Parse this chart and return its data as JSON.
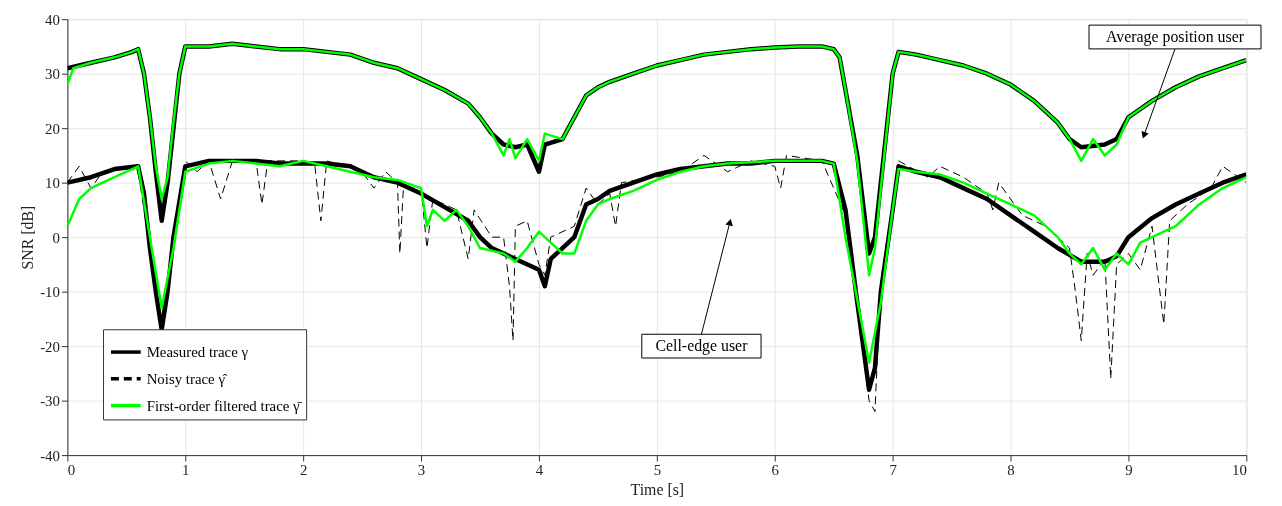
{
  "chart_data": {
    "type": "line",
    "xlabel": "Time [s]",
    "ylabel": "SNR [dB]",
    "xlim": [
      0,
      10
    ],
    "xticks": [
      0,
      1,
      2,
      3,
      4,
      5,
      6,
      7,
      8,
      9,
      10
    ],
    "ylim": [
      -40,
      40
    ],
    "yticks": [
      -40,
      -30,
      -20,
      -10,
      0,
      10,
      20,
      30,
      40
    ],
    "grid": true,
    "legend": "bottom left",
    "marker": "none",
    "annotations": [
      "Average position user",
      "Cell-edge user"
    ],
    "series": [
      {
        "color": "#000000",
        "line_style": "solid",
        "x": [
          0,
          0.2,
          0.4,
          0.55,
          0.6,
          0.65,
          0.7,
          0.75,
          0.8,
          0.85,
          0.9,
          0.95,
          1.0,
          1.2,
          1.4,
          1.6,
          1.8,
          2.0,
          2.2,
          2.4,
          2.6,
          2.8,
          3.0,
          3.2,
          3.4,
          3.5,
          3.6,
          3.7,
          3.8,
          3.9,
          4.0,
          4.05,
          4.2,
          4.3,
          4.4,
          4.5,
          4.6,
          4.8,
          5.0,
          5.2,
          5.4,
          5.6,
          5.8,
          6.0,
          6.2,
          6.4,
          6.5,
          6.55,
          6.6,
          6.7,
          6.8,
          6.85,
          6.9,
          7.0,
          7.05,
          7.2,
          7.4,
          7.6,
          7.8,
          8.0,
          8.2,
          8.4,
          8.5,
          8.6,
          8.8,
          8.9,
          9.0,
          9.2,
          9.4,
          9.6,
          9.8,
          10
        ],
        "values": [
          31,
          32,
          33,
          34,
          34.5,
          30,
          22,
          12,
          3,
          10,
          20,
          30,
          35,
          35,
          35.5,
          35,
          34.5,
          34.5,
          34,
          33.5,
          32,
          31,
          29,
          27,
          24.5,
          22,
          19,
          17,
          16.5,
          17,
          12,
          17,
          18,
          22,
          26,
          27.5,
          28.5,
          30,
          31.5,
          32.5,
          33.5,
          34,
          34.5,
          34.8,
          35,
          35,
          34.5,
          33,
          27,
          15,
          -3,
          0,
          10,
          30,
          34,
          33.5,
          32.5,
          31.5,
          30,
          28,
          25,
          21,
          18,
          16.5,
          17,
          18,
          22,
          25,
          27.5,
          29.5,
          31,
          32.5
        ]
      },
      {
        "color": "#00ff00",
        "line_style": "solid",
        "x": [
          0,
          0.05,
          0.2,
          0.4,
          0.55,
          0.6,
          0.65,
          0.7,
          0.75,
          0.8,
          0.85,
          0.9,
          0.95,
          1.0,
          1.2,
          1.4,
          1.6,
          1.8,
          2.0,
          2.2,
          2.4,
          2.6,
          2.8,
          3.0,
          3.2,
          3.4,
          3.5,
          3.6,
          3.7,
          3.75,
          3.8,
          3.9,
          4.0,
          4.05,
          4.2,
          4.3,
          4.4,
          4.5,
          4.6,
          4.8,
          5.0,
          5.2,
          5.4,
          5.6,
          5.8,
          6.0,
          6.2,
          6.4,
          6.5,
          6.55,
          6.6,
          6.7,
          6.8,
          6.85,
          6.9,
          7.0,
          7.05,
          7.2,
          7.4,
          7.6,
          7.8,
          8.0,
          8.2,
          8.4,
          8.5,
          8.6,
          8.7,
          8.8,
          8.9,
          9.0,
          9.2,
          9.4,
          9.6,
          9.8,
          10
        ],
        "values": [
          28,
          31,
          32,
          33,
          34,
          34.5,
          30,
          22,
          13,
          7,
          11,
          21,
          30,
          35,
          35,
          35.5,
          35,
          34.5,
          34.5,
          34,
          33.5,
          32,
          31,
          29,
          27,
          24.5,
          22,
          19,
          15,
          18,
          14.5,
          18,
          14,
          19,
          18,
          22,
          26,
          27.5,
          28.5,
          30,
          31.5,
          32.5,
          33.5,
          34,
          34.5,
          34.8,
          35,
          35,
          34.5,
          33,
          27,
          14,
          -7,
          -2,
          9,
          30,
          34,
          33.5,
          32.5,
          31.5,
          30,
          28,
          25,
          21,
          18,
          14,
          18,
          15,
          17,
          22,
          25,
          27.5,
          29.5,
          31,
          32.5
        ]
      },
      {
        "name": "Measured trace γ",
        "color": "#000000",
        "line_style": "solid",
        "x": [
          0,
          0.2,
          0.4,
          0.6,
          0.65,
          0.7,
          0.75,
          0.8,
          0.85,
          0.9,
          1.0,
          1.2,
          1.4,
          1.6,
          1.8,
          2.0,
          2.2,
          2.4,
          2.6,
          2.8,
          3.0,
          3.2,
          3.4,
          3.5,
          3.6,
          3.8,
          4.0,
          4.05,
          4.1,
          4.2,
          4.3,
          4.4,
          4.5,
          4.6,
          4.8,
          5.0,
          5.2,
          5.4,
          5.6,
          5.8,
          6.0,
          6.2,
          6.4,
          6.5,
          6.6,
          6.7,
          6.8,
          6.85,
          6.9,
          7.0,
          7.05,
          7.2,
          7.4,
          7.6,
          7.8,
          8.0,
          8.2,
          8.4,
          8.6,
          8.8,
          8.9,
          9.0,
          9.2,
          9.4,
          9.6,
          9.8,
          10
        ],
        "values": [
          10,
          11,
          12.5,
          13,
          8,
          -2,
          -10,
          -17,
          -10,
          0,
          13,
          14,
          14,
          14,
          13.5,
          13.5,
          13.5,
          13,
          11,
          10,
          8,
          5.5,
          3,
          0,
          -2,
          -4,
          -6,
          -9,
          -4,
          -2,
          0,
          6,
          7,
          8.5,
          10,
          11.5,
          12.5,
          13,
          13.5,
          13.5,
          14,
          14,
          14,
          13.5,
          5,
          -12,
          -28,
          -24,
          -10,
          5,
          13,
          12,
          11,
          9,
          7,
          4,
          1,
          -2,
          -4.5,
          -4.5,
          -3.5,
          0,
          3.5,
          6,
          8,
          10,
          11.5
        ]
      },
      {
        "name": "Noisy trace γ̂",
        "color": "#000000",
        "line_style": "dashed",
        "x": [
          0,
          0.1,
          0.2,
          0.3,
          0.5,
          0.6,
          0.7,
          0.8,
          0.9,
          1.0,
          1.1,
          1.2,
          1.3,
          1.4,
          1.6,
          1.65,
          1.7,
          2.0,
          2.1,
          2.15,
          2.2,
          2.5,
          2.6,
          2.7,
          2.8,
          2.82,
          2.85,
          3.0,
          3.05,
          3.1,
          3.3,
          3.4,
          3.45,
          3.6,
          3.7,
          3.75,
          3.78,
          3.8,
          3.9,
          4.0,
          4.05,
          4.1,
          4.3,
          4.4,
          4.5,
          4.6,
          4.65,
          4.7,
          5.0,
          5.2,
          5.4,
          5.6,
          5.8,
          6.0,
          6.05,
          6.1,
          6.4,
          6.6,
          6.8,
          6.85,
          6.9,
          7.0,
          7.05,
          7.3,
          7.4,
          7.6,
          7.8,
          7.85,
          7.9,
          8.1,
          8.3,
          8.5,
          8.55,
          8.6,
          8.65,
          8.7,
          8.8,
          8.85,
          8.9,
          9.0,
          9.1,
          9.2,
          9.3,
          9.35,
          9.5,
          9.7,
          9.8,
          10
        ],
        "values": [
          10,
          13,
          9,
          12,
          13,
          12,
          -2,
          -15,
          0,
          14,
          12,
          14,
          7,
          14,
          14,
          6,
          14,
          14,
          13,
          3,
          14,
          12,
          9,
          12,
          10,
          -3,
          9,
          9,
          -2,
          7,
          5,
          -4,
          5,
          0,
          0,
          -9,
          -19,
          2,
          3,
          -5,
          -7,
          0,
          2,
          9,
          6,
          8,
          2,
          10,
          11,
          12,
          15,
          12,
          14,
          13,
          9,
          15,
          14,
          4,
          -30,
          -32,
          -8,
          6,
          14,
          11,
          13,
          11,
          8,
          5,
          10,
          4,
          2,
          -2,
          -10,
          -19,
          -3,
          -7,
          -4,
          -26,
          -5,
          -3,
          -6,
          2,
          -16,
          3,
          6,
          9,
          13,
          10
        ]
      },
      {
        "name": "First-order filtered trace γ̄",
        "color": "#00ff00",
        "line_style": "solid",
        "x": [
          0,
          0.1,
          0.2,
          0.4,
          0.6,
          0.7,
          0.8,
          0.9,
          1.0,
          1.2,
          1.4,
          1.6,
          1.8,
          2.0,
          2.2,
          2.4,
          2.6,
          2.8,
          3.0,
          3.05,
          3.1,
          3.2,
          3.3,
          3.4,
          3.5,
          3.7,
          3.8,
          3.9,
          4.0,
          4.1,
          4.2,
          4.3,
          4.4,
          4.5,
          4.6,
          4.8,
          5.0,
          5.2,
          5.4,
          5.6,
          6.0,
          6.4,
          6.5,
          6.6,
          6.8,
          6.9,
          7.0,
          7.05,
          7.2,
          7.4,
          7.6,
          7.8,
          8.0,
          8.2,
          8.4,
          8.5,
          8.6,
          8.7,
          8.8,
          8.9,
          9.0,
          9.1,
          9.2,
          9.4,
          9.6,
          9.8,
          10
        ],
        "values": [
          2,
          7,
          9,
          11,
          13,
          0,
          -13,
          -2,
          12,
          13.5,
          14,
          13.5,
          13,
          14,
          13,
          12,
          11,
          10.5,
          9,
          2,
          5,
          3,
          5,
          2,
          -2,
          -3,
          -4.5,
          -2,
          1,
          -1,
          -3,
          -3,
          3,
          6,
          7,
          8.5,
          10.5,
          12,
          13,
          13.5,
          14,
          14,
          13.5,
          0,
          -23,
          -12,
          5,
          12.5,
          12,
          11.5,
          10,
          8,
          6,
          4,
          0,
          -3,
          -5,
          -2,
          -6,
          -3,
          -5,
          -1,
          0,
          2,
          6,
          9,
          11
        ]
      }
    ]
  }
}
